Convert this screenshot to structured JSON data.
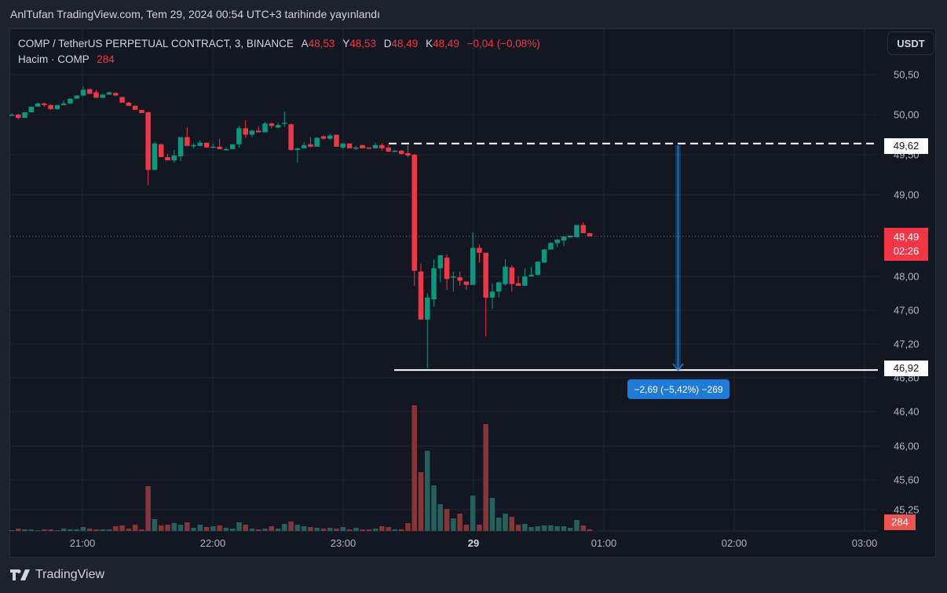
{
  "header": {
    "published": "AnlTufan TradingView.com, Tem 29, 2024 00:54 UTC+3 tarihinde yayınlandı"
  },
  "legend": {
    "symbol": "COMP / TetherUS PERPETUAL CONTRACT, 3, BINANCE",
    "o_label": "A",
    "o": "48,53",
    "h_label": "Y",
    "h": "48,53",
    "l_label": "D",
    "l": "48,49",
    "c_label": "K",
    "c": "48,49",
    "change": "−0,04 (−0,08%)",
    "volume_label": "Hacim · COMP",
    "volume": "284"
  },
  "currency_button": "USDT",
  "price_axis": [
    "50,50",
    "50,00",
    "49,50",
    "49,00",
    "48,00",
    "47,60",
    "47,20",
    "46,80",
    "46,40",
    "46,00",
    "45,60",
    "45,25"
  ],
  "time_axis": [
    "21:00",
    "22:00",
    "23:00",
    "29",
    "01:00",
    "02:00",
    "03:00"
  ],
  "price_labels": {
    "measure_top": "49,62",
    "measure_bottom": "46,92",
    "last_price": "48,49",
    "countdown": "02:26",
    "last_volume": "284"
  },
  "measure_result": "−2,69 (−5,42%) −269",
  "colors": {
    "up": "#089981",
    "down": "#f23645",
    "up_volume": "#22615c",
    "down_volume": "#873538",
    "measure": "#1e7bd6",
    "background": "#131722"
  },
  "footer": {
    "brand": "TradingView"
  },
  "chart_data": {
    "type": "candlestick",
    "interval_minutes": 3,
    "price_levels": {
      "measure_top": 49.62,
      "measure_bottom": 46.92,
      "last": 48.49
    },
    "ohlc": [
      [
        50.0,
        50.02,
        49.99,
        50.0
      ],
      [
        50.0,
        50.01,
        49.94,
        49.96
      ],
      [
        49.96,
        50.03,
        49.96,
        50.03
      ],
      [
        50.03,
        50.1,
        50.03,
        50.1
      ],
      [
        50.1,
        50.15,
        50.1,
        50.14
      ],
      [
        50.14,
        50.15,
        50.1,
        50.12
      ],
      [
        50.12,
        50.13,
        50.06,
        50.07
      ],
      [
        50.07,
        50.12,
        50.06,
        50.12
      ],
      [
        50.12,
        50.18,
        50.12,
        50.14
      ],
      [
        50.14,
        50.2,
        50.13,
        50.2
      ],
      [
        50.2,
        50.24,
        50.2,
        50.24
      ],
      [
        50.24,
        50.35,
        50.23,
        50.31
      ],
      [
        50.32,
        50.32,
        50.26,
        50.26
      ],
      [
        50.28,
        50.31,
        50.21,
        50.21
      ],
      [
        50.21,
        50.26,
        50.21,
        50.25
      ],
      [
        50.25,
        50.29,
        50.25,
        50.28
      ],
      [
        50.27,
        50.28,
        50.23,
        50.24
      ],
      [
        50.22,
        50.22,
        50.15,
        50.15
      ],
      [
        50.15,
        50.16,
        50.11,
        50.11
      ],
      [
        50.11,
        50.12,
        50.06,
        50.06
      ],
      [
        50.06,
        50.06,
        50.02,
        50.02
      ],
      [
        50.03,
        50.04,
        49.12,
        49.31
      ],
      [
        49.31,
        49.66,
        49.31,
        49.64
      ],
      [
        49.63,
        49.64,
        49.47,
        49.47
      ],
      [
        49.47,
        49.51,
        49.43,
        49.43
      ],
      [
        49.43,
        49.56,
        49.4,
        49.49
      ],
      [
        49.48,
        49.72,
        49.42,
        49.72
      ],
      [
        49.72,
        49.84,
        49.61,
        49.61
      ],
      [
        49.61,
        49.64,
        49.58,
        49.62
      ],
      [
        49.61,
        49.68,
        49.61,
        49.65
      ],
      [
        49.65,
        49.65,
        49.59,
        49.59
      ],
      [
        49.59,
        49.64,
        49.58,
        49.6
      ],
      [
        49.6,
        49.7,
        49.57,
        49.57
      ],
      [
        49.56,
        49.59,
        49.55,
        49.57
      ],
      [
        49.57,
        49.63,
        49.57,
        49.63
      ],
      [
        49.63,
        49.86,
        49.59,
        49.83
      ],
      [
        49.83,
        49.93,
        49.71,
        49.75
      ],
      [
        49.75,
        49.81,
        49.72,
        49.8
      ],
      [
        49.8,
        49.85,
        49.78,
        49.78
      ],
      [
        49.78,
        49.91,
        49.78,
        49.89
      ],
      [
        49.89,
        49.9,
        49.83,
        49.86
      ],
      [
        49.84,
        49.9,
        49.83,
        49.87
      ],
      [
        49.89,
        50.04,
        49.85,
        49.9
      ],
      [
        49.88,
        49.89,
        49.55,
        49.56
      ],
      [
        49.56,
        49.59,
        49.4,
        49.58
      ],
      [
        49.58,
        49.66,
        49.58,
        49.62
      ],
      [
        49.63,
        49.72,
        49.59,
        49.6
      ],
      [
        49.6,
        49.72,
        49.6,
        49.71
      ],
      [
        49.73,
        49.74,
        49.69,
        49.7
      ],
      [
        49.7,
        49.76,
        49.68,
        49.74
      ],
      [
        49.75,
        49.75,
        49.6,
        49.6
      ],
      [
        49.59,
        49.64,
        49.57,
        49.64
      ],
      [
        49.64,
        49.64,
        49.58,
        49.58
      ],
      [
        49.58,
        49.61,
        49.56,
        49.59
      ],
      [
        49.62,
        49.62,
        49.58,
        49.58
      ],
      [
        49.59,
        49.59,
        49.57,
        49.58
      ],
      [
        49.58,
        49.65,
        49.58,
        49.62
      ],
      [
        49.62,
        49.64,
        49.55,
        49.58
      ],
      [
        49.59,
        49.62,
        49.53,
        49.54
      ],
      [
        49.54,
        49.56,
        49.54,
        49.55
      ],
      [
        49.55,
        49.56,
        49.5,
        49.51
      ],
      [
        49.52,
        49.62,
        49.47,
        49.49
      ],
      [
        49.5,
        49.51,
        47.89,
        48.07
      ],
      [
        48.06,
        48.16,
        47.49,
        47.49
      ],
      [
        47.49,
        47.8,
        46.91,
        47.75
      ],
      [
        47.73,
        48.21,
        47.64,
        48.1
      ],
      [
        48.1,
        48.26,
        47.93,
        48.26
      ],
      [
        48.23,
        48.27,
        47.84,
        47.97
      ],
      [
        47.99,
        48.06,
        47.82,
        48.0
      ],
      [
        47.99,
        48.06,
        47.89,
        47.95
      ],
      [
        47.94,
        47.94,
        47.84,
        47.9
      ],
      [
        47.9,
        48.54,
        47.9,
        48.35
      ],
      [
        48.35,
        48.39,
        48.17,
        48.29
      ],
      [
        48.29,
        48.29,
        47.29,
        47.75
      ],
      [
        47.75,
        47.92,
        47.62,
        47.82
      ],
      [
        47.82,
        47.94,
        47.75,
        47.93
      ],
      [
        47.91,
        48.21,
        47.89,
        48.12
      ],
      [
        48.11,
        48.14,
        47.82,
        47.91
      ],
      [
        47.92,
        48.0,
        47.89,
        47.89
      ],
      [
        47.89,
        48.1,
        47.89,
        48.0
      ],
      [
        48.0,
        48.12,
        48.0,
        48.02
      ],
      [
        48.02,
        48.19,
        48.01,
        48.18
      ],
      [
        48.17,
        48.34,
        48.17,
        48.33
      ],
      [
        48.33,
        48.42,
        48.33,
        48.41
      ],
      [
        48.41,
        48.46,
        48.36,
        48.45
      ],
      [
        48.44,
        48.49,
        48.37,
        48.49
      ],
      [
        48.48,
        48.5,
        48.47,
        48.5
      ],
      [
        48.48,
        48.63,
        48.48,
        48.63
      ],
      [
        48.63,
        48.66,
        48.53,
        48.53
      ],
      [
        48.53,
        48.53,
        48.49,
        48.49
      ]
    ],
    "volume": [
      142,
      426,
      284,
      284,
      142,
      284,
      284,
      142,
      426,
      284,
      284,
      710,
      426,
      284,
      284,
      284,
      852,
      994,
      426,
      1136,
      284,
      8094,
      2130,
      994,
      1136,
      1420,
      1136,
      1562,
      568,
      1136,
      710,
      852,
      994,
      568,
      426,
      1562,
      1136,
      426,
      284,
      426,
      852,
      426,
      1278,
      1704,
      1136,
      852,
      710,
      568,
      426,
      568,
      426,
      710,
      284,
      568,
      284,
      284,
      426,
      852,
      710,
      284,
      284,
      1420,
      22720,
      10650,
      14484,
      8236,
      4828,
      3976,
      2272,
      3124,
      1136,
      6390,
      1136,
      19312,
      5964,
      2414,
      3124,
      2556,
      1136,
      1278,
      710,
      852,
      994,
      994,
      852,
      852,
      568,
      1988,
      994,
      284
    ]
  }
}
